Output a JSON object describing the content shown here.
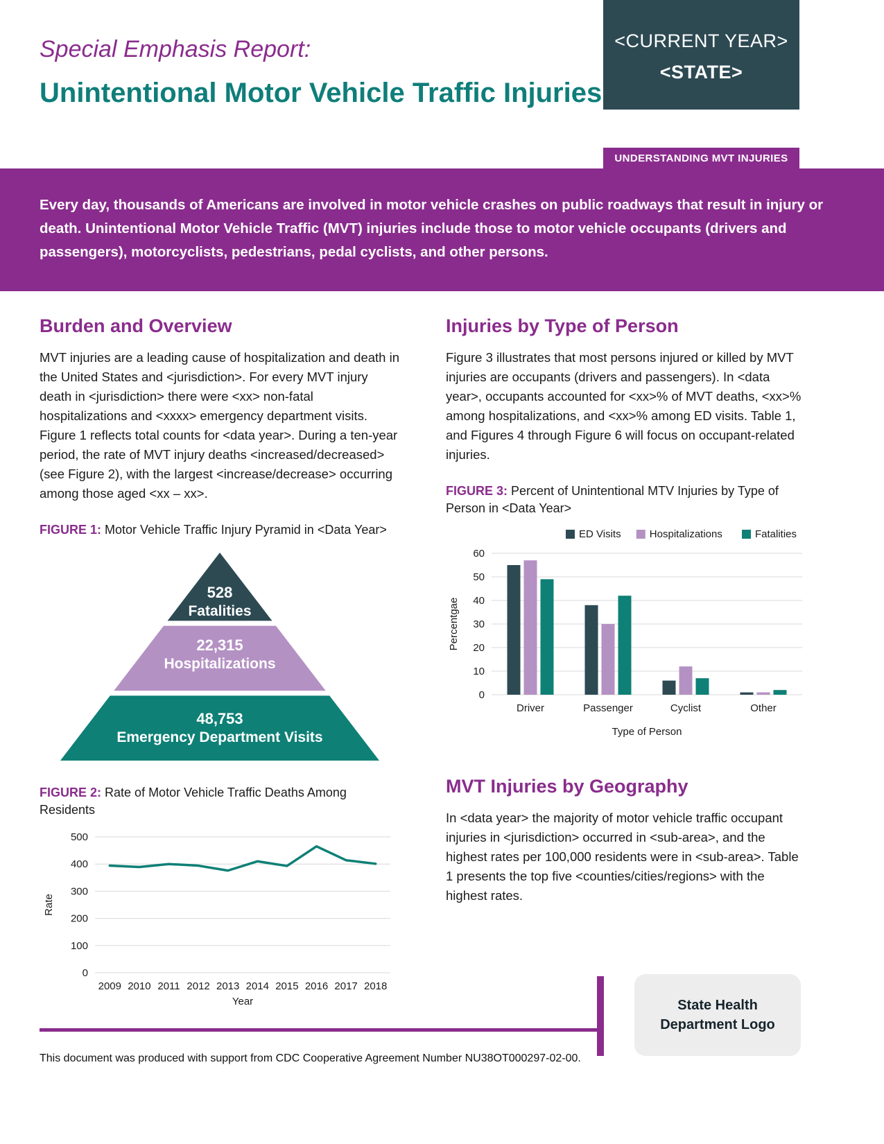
{
  "header": {
    "kicker": "Special Emphasis Report:",
    "title": "Unintentional Motor Vehicle Traffic Injuries",
    "year_box": {
      "year": "<CURRENT YEAR>",
      "state": "<STATE>"
    },
    "section_tag": "UNDERSTANDING MVT INJURIES"
  },
  "intro": {
    "text": "Every day, thousands of Americans are involved in motor vehicle crashes on public roadways that result in injury or death. Unintentional Motor Vehicle Traffic (MVT) injuries include those to motor vehicle occupants (drivers and passengers), motorcyclists, pedestrians, pedal cyclists, and other persons."
  },
  "left": {
    "burden_heading": "Burden and Overview",
    "burden_body": "MVT injuries are a leading cause of hospitalization and death in the United States and <jurisdiction>. For every MVT injury death in <jurisdiction> there were <xx> non-fatal hospitalizations and <xxxx> emergency department visits. Figure 1 reflects total counts for <data year>. During a ten-year period, the rate of MVT injury deaths <increased/decreased> (see Figure 2), with the largest <increase/decrease> occurring among those aged <xx – xx>.",
    "figure1": {
      "label": "FIGURE 1:",
      "caption": "Motor Vehicle Traffic Injury Pyramid in <Data Year>"
    },
    "figure2": {
      "label": "FIGURE 2:",
      "caption": "Rate of Motor Vehicle Traffic Deaths Among Residents"
    }
  },
  "right": {
    "persons_heading": "Injuries by Type of Person",
    "persons_body": "Figure 3 illustrates that most persons injured or killed by MVT injuries are occupants (drivers and passengers). In <data year>, occupants accounted for <xx>% of MVT deaths, <xx>% among hospitalizations, and <xx>% among ED visits. Table 1, and Figures 4 through Figure 6 will focus on occupant-related injuries.",
    "figure3": {
      "label": "FIGURE 3:",
      "caption": "Percent of Unintentional MTV Injuries by Type of Person in <Data Year>"
    },
    "geo_heading": "MVT Injuries by Geography",
    "geo_body": "In <data year> the majority of motor vehicle traffic occupant injuries in <jurisdiction> occurred in <sub-area>, and the highest rates per 100,000 residents were in <sub-area>. Table 1 presents the top five <counties/cities/regions> with the highest rates."
  },
  "footer": {
    "note": "This document was produced with support from CDC Cooperative Agreement Number NU38OT000297-02-00.",
    "logo_line1": "State Health",
    "logo_line2": "Department Logo"
  },
  "colors": {
    "purple": "#8a2c8d",
    "teal": "#0f7e7a",
    "dark_slate": "#2d4a53",
    "mauve": "#b491c3",
    "chart_teal": "#0e8076"
  },
  "chart_data": [
    {
      "id": "figure1_pyramid",
      "type": "pyramid",
      "title": "Motor Vehicle Traffic Injury Pyramid in <Data Year>",
      "levels": [
        {
          "value": "528",
          "label": "Fatalities",
          "color": "#2d4a53"
        },
        {
          "value": "22,315",
          "label": "Hospitalizations",
          "color": "#b491c3"
        },
        {
          "value": "48,753",
          "label": "Emergency Department Visits",
          "color": "#0e8076"
        }
      ]
    },
    {
      "id": "figure2_line",
      "type": "line",
      "title": "Rate of Motor Vehicle Traffic Deaths Among Residents",
      "xlabel": "Year",
      "ylabel": "Rate",
      "x": [
        2009,
        2010,
        2011,
        2012,
        2013,
        2014,
        2015,
        2016,
        2017,
        2018
      ],
      "values": [
        394,
        389,
        400,
        394,
        376,
        410,
        393,
        465,
        414,
        401
      ],
      "ylim": [
        0,
        500
      ],
      "yticks": [
        0,
        100,
        200,
        300,
        400,
        500
      ],
      "line_color": "#0e8076",
      "grid": true
    },
    {
      "id": "figure3_bar",
      "type": "bar",
      "xlabel": "Type of Person",
      "ylabel": "Percentgae",
      "categories": [
        "Driver",
        "Passenger",
        "Cyclist",
        "Other"
      ],
      "series": [
        {
          "name": "ED Visits",
          "color": "#2d4a53",
          "values": [
            55,
            38,
            6,
            1
          ]
        },
        {
          "name": "Hospitalizations",
          "color": "#b491c3",
          "values": [
            57,
            30,
            12,
            1
          ]
        },
        {
          "name": "Fatalities",
          "color": "#0e8076",
          "values": [
            49,
            42,
            7,
            2
          ]
        }
      ],
      "ylim": [
        0,
        60
      ],
      "yticks": [
        0,
        10,
        20,
        30,
        40,
        50,
        60
      ],
      "legend_position": "top",
      "grid": true
    }
  ]
}
